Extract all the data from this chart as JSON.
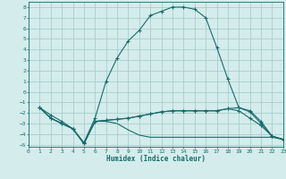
{
  "title": "",
  "xlabel": "Humidex (Indice chaleur)",
  "background_color": "#d4ecec",
  "grid_color": "#a0c8c8",
  "line_color": "#1a6b6b",
  "xlim": [
    0,
    23
  ],
  "ylim": [
    -5.2,
    8.5
  ],
  "xticks": [
    0,
    1,
    2,
    3,
    4,
    5,
    6,
    7,
    8,
    9,
    10,
    11,
    12,
    13,
    14,
    15,
    16,
    17,
    18,
    19,
    20,
    21,
    22,
    23
  ],
  "yticks": [
    -5,
    -4,
    -3,
    -2,
    -1,
    0,
    1,
    2,
    3,
    4,
    5,
    6,
    7,
    8
  ],
  "curve1_x": [
    1,
    2,
    3,
    4,
    5,
    6,
    7,
    8,
    9,
    10,
    11,
    12,
    13,
    14,
    15,
    16,
    17,
    18,
    19,
    20,
    21,
    22,
    23
  ],
  "curve1_y": [
    -1.5,
    -2.2,
    -2.8,
    -3.5,
    -4.8,
    -2.5,
    1.0,
    3.2,
    4.8,
    5.8,
    7.2,
    7.6,
    8.0,
    8.0,
    7.8,
    7.0,
    4.2,
    1.2,
    -1.5,
    -1.8,
    -2.8,
    -4.2,
    -4.5
  ],
  "curve2_x": [
    1,
    2,
    3,
    4,
    5,
    6,
    7,
    8,
    9,
    10,
    11,
    12,
    13,
    14,
    15,
    16,
    17,
    18,
    19,
    20,
    21,
    22,
    23
  ],
  "curve2_y": [
    -1.5,
    -2.5,
    -3.0,
    -3.5,
    -4.9,
    -2.8,
    -2.7,
    -2.6,
    -2.5,
    -2.3,
    -2.1,
    -1.9,
    -1.8,
    -1.8,
    -1.8,
    -1.8,
    -1.8,
    -1.6,
    -1.5,
    -1.9,
    -3.0,
    -4.2,
    -4.5
  ],
  "curve3_x": [
    1,
    2,
    3,
    4,
    5,
    6,
    7,
    8,
    9,
    10,
    11,
    12,
    13,
    14,
    15,
    16,
    17,
    18,
    19,
    20,
    21,
    22,
    23
  ],
  "curve3_y": [
    -1.5,
    -2.5,
    -3.0,
    -3.5,
    -4.9,
    -2.8,
    -2.7,
    -2.6,
    -2.5,
    -2.3,
    -2.1,
    -1.9,
    -1.8,
    -1.8,
    -1.8,
    -1.8,
    -1.8,
    -1.6,
    -1.8,
    -2.5,
    -3.2,
    -4.2,
    -4.5
  ],
  "curve4_x": [
    1,
    2,
    3,
    4,
    5,
    6,
    7,
    8,
    9,
    10,
    11,
    12,
    13,
    14,
    15,
    16,
    17,
    18,
    19,
    20,
    21,
    22,
    23
  ],
  "curve4_y": [
    -1.5,
    -2.5,
    -3.0,
    -3.5,
    -4.9,
    -2.8,
    -2.8,
    -3.0,
    -3.6,
    -4.1,
    -4.3,
    -4.3,
    -4.3,
    -4.3,
    -4.3,
    -4.3,
    -4.3,
    -4.3,
    -4.3,
    -4.3,
    -4.3,
    -4.3,
    -4.5
  ]
}
